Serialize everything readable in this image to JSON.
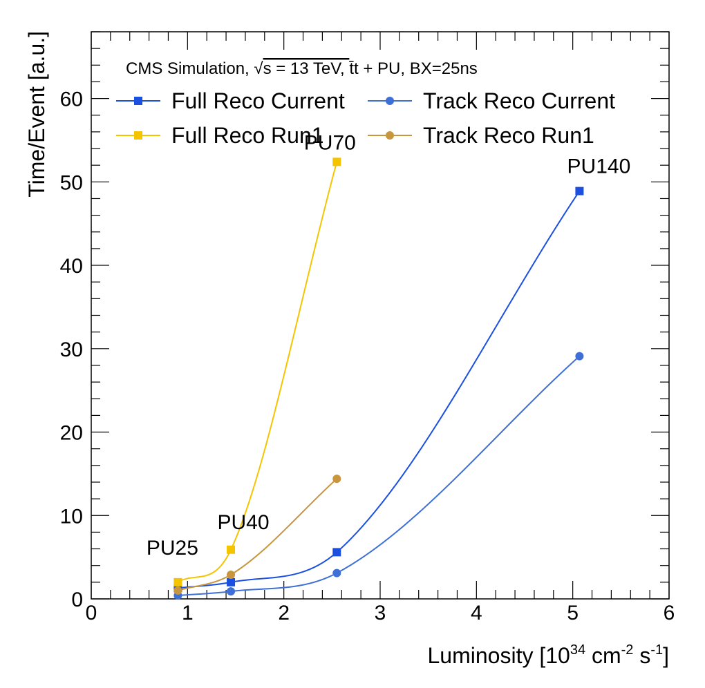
{
  "chart_data": {
    "type": "line",
    "header": {
      "prefix": "CMS Simulation, ",
      "sqrt": "√",
      "s_part": "s = 13 TeV, ",
      "tt": "t̄t",
      "suffix": " + PU, BX=25ns"
    },
    "xlabel": {
      "main": "Luminosity [10",
      "exp1": "34",
      "mid1": " cm",
      "exp2": "-2",
      "mid2": " s",
      "exp3": "-1",
      "end": "]"
    },
    "ylabel": "Time/Event [a.u.]",
    "xlim": [
      0,
      6
    ],
    "ylim": [
      0,
      68
    ],
    "x_ticks": [
      0,
      1,
      2,
      3,
      4,
      5,
      6
    ],
    "y_ticks": [
      0,
      10,
      20,
      30,
      40,
      50,
      60
    ],
    "legend": "top",
    "grid": false,
    "series": [
      {
        "name": "Full Reco Current",
        "color": "#1a4fe0",
        "marker": "square",
        "x": [
          0.9,
          1.45,
          2.55,
          5.07
        ],
        "values": [
          1.3,
          2.0,
          5.6,
          48.9
        ]
      },
      {
        "name": "Track Reco Current",
        "color": "#3d6fd6",
        "marker": "circle",
        "x": [
          0.9,
          1.45,
          2.55,
          5.07
        ],
        "values": [
          0.4,
          0.9,
          3.1,
          29.1
        ]
      },
      {
        "name": "Full Reco Run1",
        "color": "#f5c400",
        "marker": "square",
        "x": [
          0.9,
          1.45,
          2.55
        ],
        "values": [
          2.0,
          5.9,
          52.4
        ]
      },
      {
        "name": "Track Reco Run1",
        "color": "#c8963c",
        "marker": "circle",
        "x": [
          0.9,
          1.45,
          2.55
        ],
        "values": [
          1.0,
          2.9,
          14.4
        ]
      }
    ],
    "annotations": [
      {
        "text": "PU25",
        "x": 0.9
      },
      {
        "text": "PU40",
        "x": 1.45
      },
      {
        "text": "PU70",
        "x": 2.55
      },
      {
        "text": "PU140",
        "x": 5.07
      }
    ]
  }
}
